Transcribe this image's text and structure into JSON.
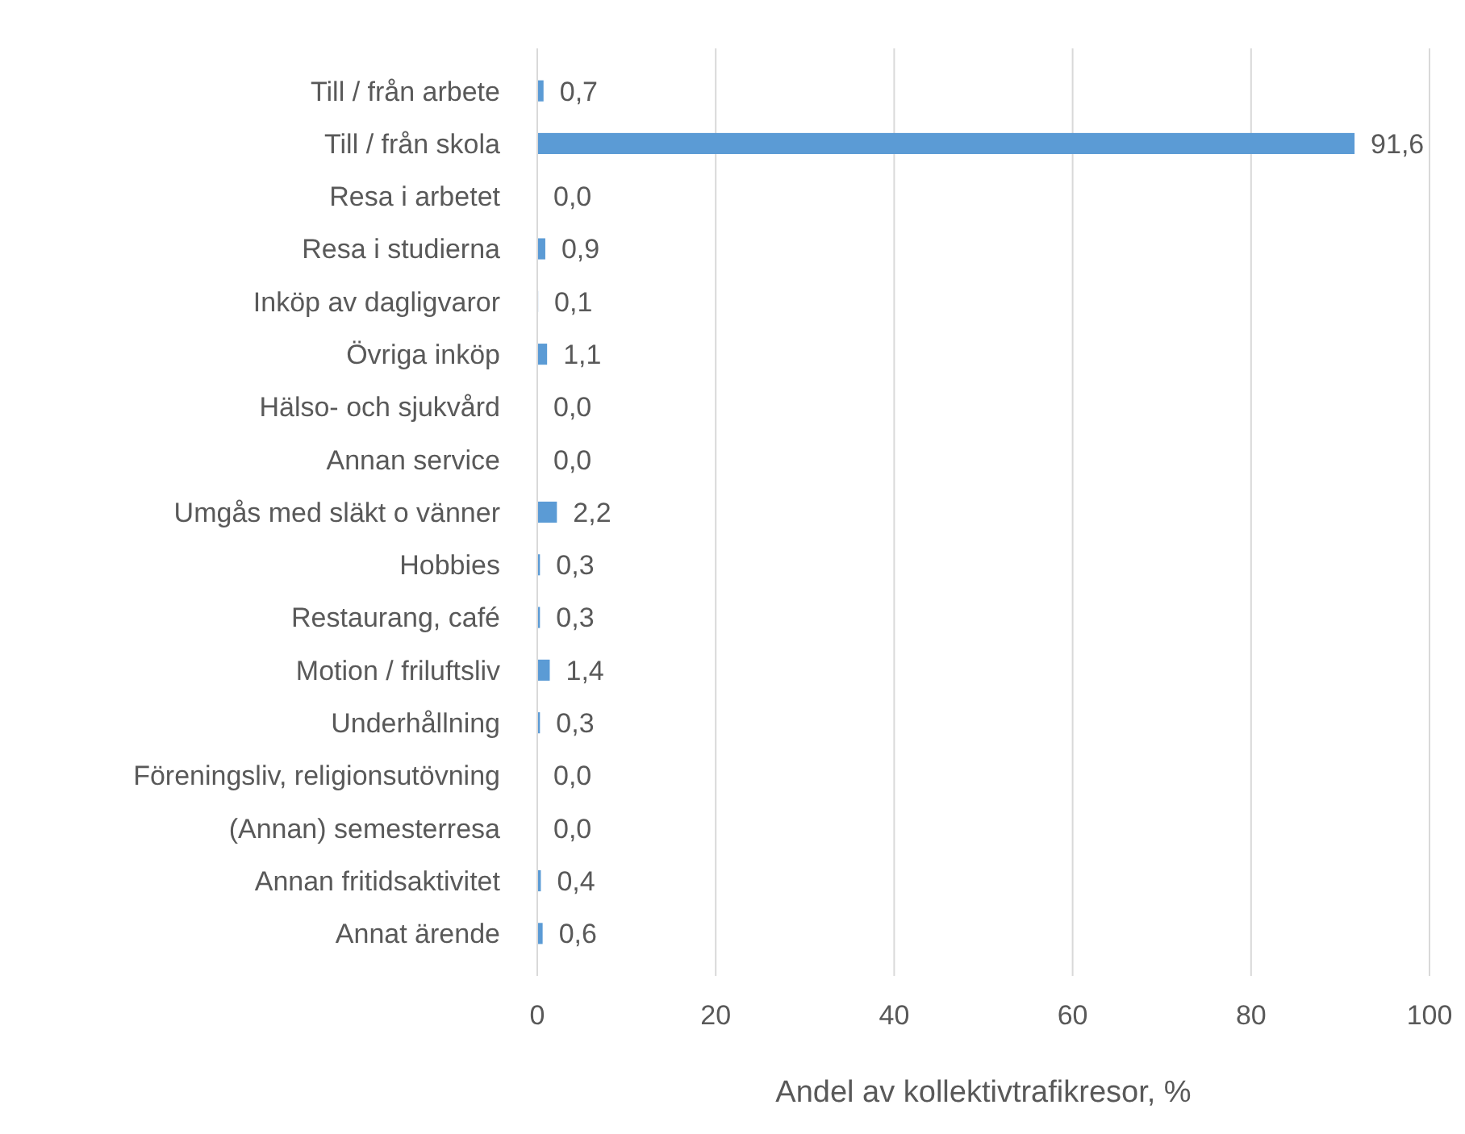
{
  "chart_data": {
    "type": "bar",
    "orientation": "horizontal",
    "xlabel": "Andel av kollektivtrafikresor, %",
    "categories": [
      "Till / från arbete",
      "Till / från skola",
      "Resa i arbetet",
      "Resa i studierna",
      "Inköp av dagligvaror",
      "Övriga inköp",
      "Hälso- och sjukvård",
      "Annan service",
      "Umgås med släkt o vänner",
      "Hobbies",
      "Restaurang, café",
      "Motion / friluftsliv",
      "Underhållning",
      "Föreningsliv, religionsutövning",
      "(Annan) semesterresa",
      "Annan fritidsaktivitet",
      "Annat ärende"
    ],
    "values": [
      0.7,
      91.6,
      0.0,
      0.9,
      0.1,
      1.1,
      0.0,
      0.0,
      2.2,
      0.3,
      0.3,
      1.4,
      0.3,
      0.0,
      0.0,
      0.4,
      0.6
    ],
    "value_labels": [
      "0,7",
      "91,6",
      "0,0",
      "0,9",
      "0,1",
      "1,1",
      "0,0",
      "0,0",
      "2,2",
      "0,3",
      "0,3",
      "1,4",
      "0,3",
      "0,0",
      "0,0",
      "0,4",
      "0,6"
    ],
    "color": "#5b9bd5",
    "xlim": [
      0,
      100
    ],
    "xticks": [
      0,
      20,
      40,
      60,
      80,
      100
    ],
    "grid": "x"
  }
}
